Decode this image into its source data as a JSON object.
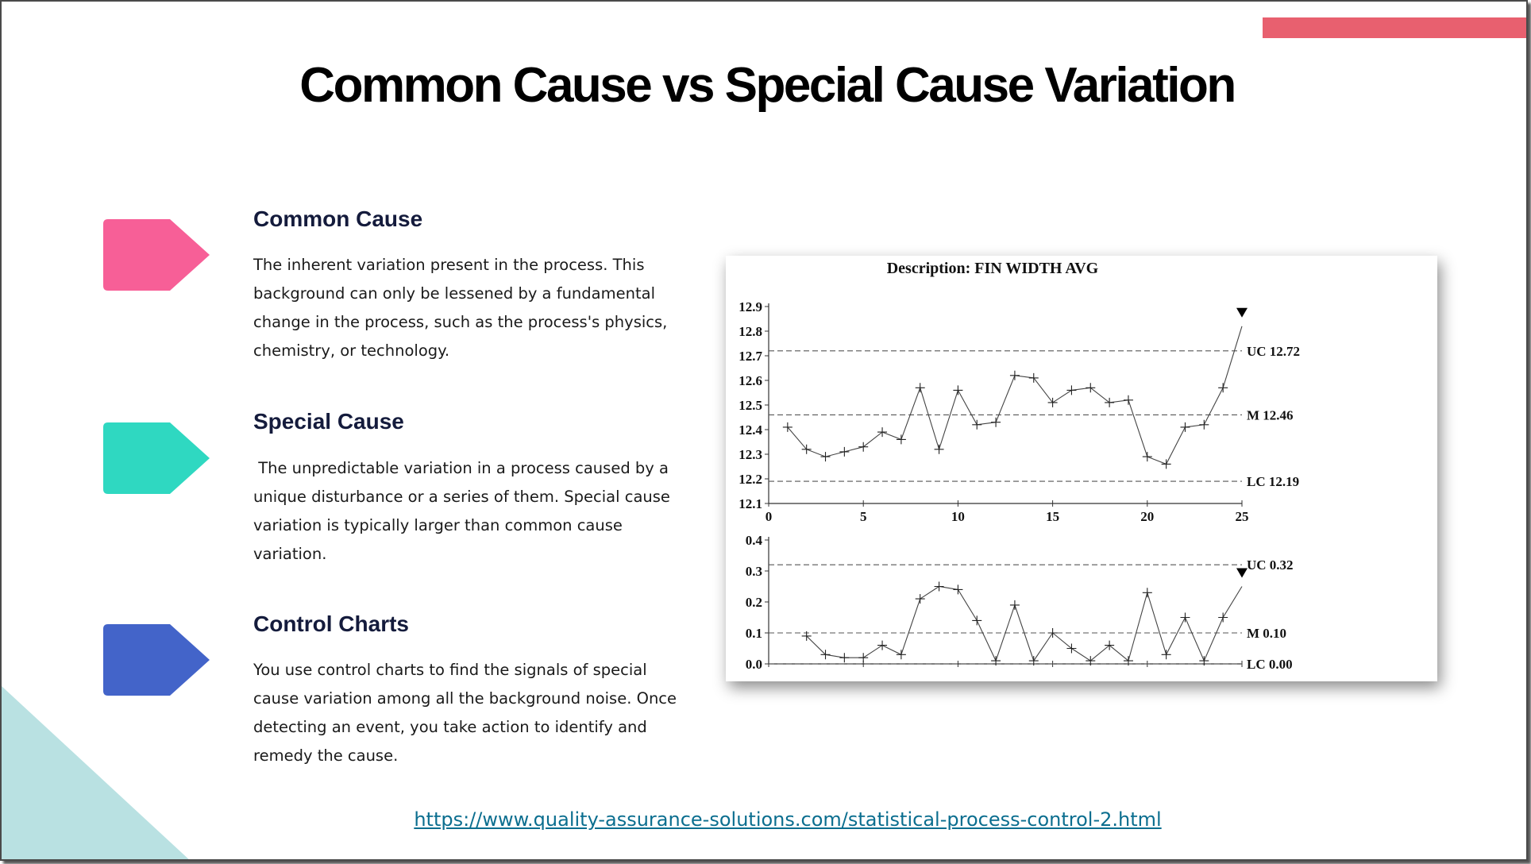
{
  "slide": {
    "title": "Common Cause vs Special Cause Variation",
    "colors": {
      "accent_bar": "#e8606f",
      "corner": "#b9e1e2",
      "heading": "#141b3c",
      "link": "#0b6e8f"
    }
  },
  "sections": [
    {
      "heading": "Common Cause",
      "tag_color": "#f75f97",
      "body": "The inherent variation present in the process. This\nbackground can only be lessened by a fundamental\nchange in the process, such as the process's physics,\nchemistry, or technology."
    },
    {
      "heading": "Special Cause",
      "tag_color": "#2fd8c1",
      "body": " The unpredictable variation in a process caused by a\nunique disturbance or a series of them. Special cause\nvariation is typically larger than common cause\nvariation."
    },
    {
      "heading": "Control Charts",
      "tag_color": "#4364c9",
      "body": "You use control charts to find the signals of special\ncause variation among all the background noise. Once\ndetecting an event, you take action to identify and\nremedy the cause."
    }
  ],
  "source_link": "https://www.quality-assurance-solutions.com/statistical-process-control-2.html",
  "chart_data": [
    {
      "type": "line",
      "title": "Description: FIN WIDTH AVG",
      "x": [
        1,
        2,
        3,
        4,
        5,
        6,
        7,
        8,
        9,
        10,
        11,
        12,
        13,
        14,
        15,
        16,
        17,
        18,
        19,
        20,
        21,
        22,
        23,
        24,
        25
      ],
      "values": [
        12.41,
        12.32,
        12.29,
        12.31,
        12.33,
        12.39,
        12.36,
        12.57,
        12.32,
        12.56,
        12.42,
        12.43,
        12.62,
        12.61,
        12.51,
        12.56,
        12.57,
        12.51,
        12.52,
        12.29,
        12.26,
        12.41,
        12.42,
        12.57,
        12.82
      ],
      "xlim": [
        0,
        25
      ],
      "ylim": [
        12.1,
        12.9
      ],
      "xticks": [
        "0",
        "5",
        "10",
        "15",
        "20",
        "25"
      ],
      "yticks": [
        "12.1",
        "12.2",
        "12.3",
        "12.4",
        "12.5",
        "12.6",
        "12.7",
        "12.8",
        "12.9"
      ],
      "limits": [
        {
          "label": "UC 12.72",
          "value": 12.72
        },
        {
          "label": "M 12.46",
          "value": 12.46
        },
        {
          "label": "LC 12.19",
          "value": 12.19
        }
      ],
      "signal_marker": {
        "x": 25,
        "value": 12.82
      }
    },
    {
      "type": "line",
      "x": [
        2,
        3,
        4,
        5,
        6,
        7,
        8,
        9,
        10,
        11,
        12,
        13,
        14,
        15,
        16,
        17,
        18,
        19,
        20,
        21,
        22,
        23,
        24,
        25
      ],
      "values": [
        0.09,
        0.03,
        0.02,
        0.02,
        0.06,
        0.03,
        0.21,
        0.25,
        0.24,
        0.14,
        0.01,
        0.19,
        0.01,
        0.1,
        0.05,
        0.01,
        0.06,
        0.01,
        0.23,
        0.03,
        0.15,
        0.01,
        0.15,
        0.25
      ],
      "xlim": [
        0,
        25
      ],
      "ylim": [
        0,
        0.4
      ],
      "yticks": [
        "0.0",
        "0.1",
        "0.2",
        "0.3",
        "0.4"
      ],
      "limits": [
        {
          "label": "UC 0.32",
          "value": 0.32
        },
        {
          "label": "M 0.10",
          "value": 0.1
        },
        {
          "label": "LC 0.00",
          "value": 0.0
        }
      ],
      "signal_marker": {
        "x": 25,
        "value": 0.25
      }
    }
  ]
}
